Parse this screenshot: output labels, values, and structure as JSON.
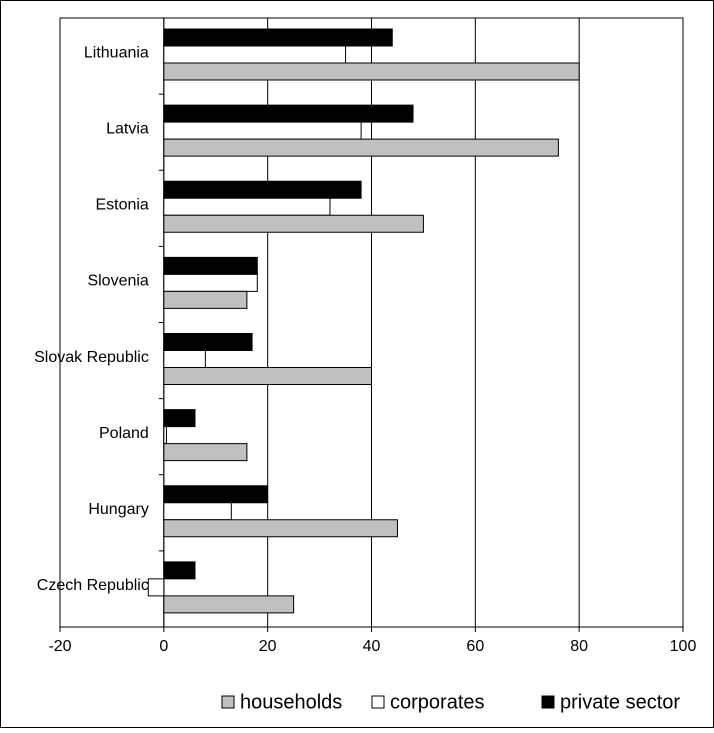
{
  "chart_data": {
    "type": "hbar",
    "categories": [
      "Lithuania",
      "Latvia",
      "Estonia",
      "Slovenia",
      "Slovak Republic",
      "Poland",
      "Hungary",
      "Czech Republic"
    ],
    "series": [
      {
        "name": "households",
        "color": "#c0c0c0",
        "values": [
          80,
          76,
          50,
          16,
          40,
          16,
          45,
          25
        ]
      },
      {
        "name": "corporates",
        "color": "#ffffff",
        "values": [
          35,
          38,
          32,
          18,
          8,
          0.5,
          13,
          -3
        ]
      },
      {
        "name": "private sector",
        "color": "#000000",
        "values": [
          44,
          48,
          38,
          18,
          17,
          6,
          20,
          6
        ]
      }
    ],
    "xlim": [
      -20,
      100
    ],
    "xticks": [
      -20,
      0,
      20,
      40,
      60,
      80,
      100
    ],
    "grid": true,
    "legend": "bottom"
  }
}
